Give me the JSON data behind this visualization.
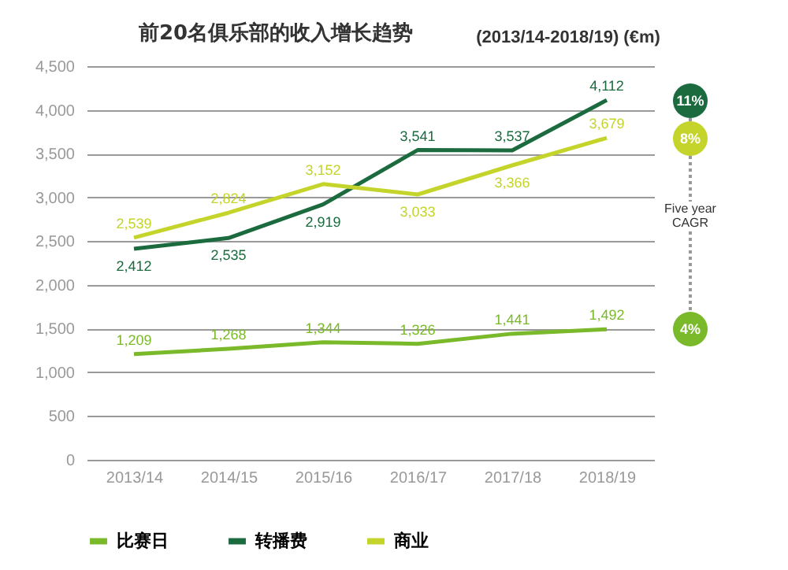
{
  "chart_data": {
    "type": "line",
    "title": "前20名俱乐部的收入增长趋势",
    "subtitle": "(2013/14-2018/19) (€m)",
    "categories": [
      "2013/14",
      "2014/15",
      "2015/16",
      "2016/17",
      "2017/18",
      "2018/19"
    ],
    "series": [
      {
        "name": "比赛日",
        "color": "#7ab92a",
        "values": [
          1209,
          1268,
          1344,
          1326,
          1441,
          1492
        ],
        "value_labels": [
          "1,209",
          "1,268",
          "1,344",
          "1,326",
          "1,441",
          "1,492"
        ]
      },
      {
        "name": "转播费",
        "color": "#1b6b3f",
        "values": [
          2412,
          2535,
          2919,
          3541,
          3537,
          4112
        ],
        "value_labels": [
          "2,412",
          "2,535",
          "2,919",
          "3,541",
          "3,537",
          "4,112"
        ]
      },
      {
        "name": "商业",
        "color": "#c4d42b",
        "values": [
          2539,
          2824,
          3152,
          3033,
          3366,
          3679
        ],
        "value_labels": [
          "2,539",
          "2,824",
          "3,152",
          "3,033",
          "3,366",
          "3,679"
        ]
      }
    ],
    "ylim": [
      0,
      4500
    ],
    "yticks": [
      0,
      500,
      {
        "value": 1000,
        "label": "1,000"
      },
      {
        "value": 1500,
        "label": "1,500"
      },
      {
        "value": 2000,
        "label": "2,000"
      },
      {
        "value": 2500,
        "label": "2,500"
      },
      {
        "value": 3000,
        "label": "3,000"
      },
      {
        "value": 3500,
        "label": "3,500"
      },
      {
        "value": 4000,
        "label": "4,000"
      },
      {
        "value": 4500,
        "label": "4,500"
      }
    ],
    "grid": "y",
    "legend": "bottom",
    "marker": "none",
    "line_style": "solid",
    "annotations": [
      "11%",
      "8%",
      "4%",
      "Five year CAGR"
    ]
  }
}
